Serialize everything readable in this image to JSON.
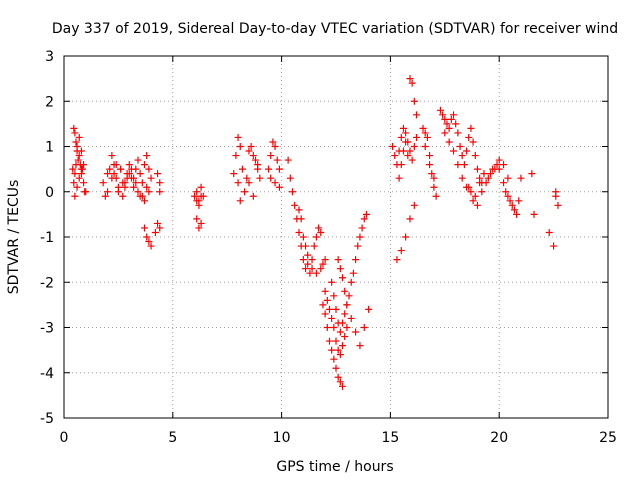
{
  "chart_data": {
    "type": "scatter",
    "title": "Day 337 of 2019, Sidereal Day-to-day VTEC variation (SDTVAR) for receiver wind",
    "xlabel": "GPS time / hours",
    "ylabel": "SDTVAR / TECUs",
    "xlim": [
      0,
      25
    ],
    "ylim": [
      -5,
      3
    ],
    "xticks": [
      0,
      5,
      10,
      15,
      20,
      25
    ],
    "yticks": [
      -5,
      -4,
      -3,
      -2,
      -1,
      0,
      1,
      2,
      3
    ],
    "grid": true,
    "marker": "plus",
    "color": "#ff0000",
    "series": [
      {
        "name": "SDTVAR",
        "x": [
          0.4,
          0.45,
          0.5,
          0.55,
          0.6,
          0.65,
          0.7,
          0.75,
          0.8,
          0.85,
          0.9,
          0.95,
          0.45,
          0.5,
          0.55,
          0.6,
          0.7,
          0.8,
          0.9,
          0.5,
          0.6,
          0.7,
          0.8,
          1.0,
          1.8,
          1.9,
          2.0,
          2.1,
          2.2,
          2.3,
          2.4,
          2.5,
          2.6,
          2.7,
          2.8,
          2.9,
          3.0,
          3.1,
          3.2,
          3.3,
          3.4,
          3.5,
          3.6,
          3.7,
          3.8,
          3.9,
          4.0,
          2.0,
          2.2,
          2.4,
          2.6,
          2.8,
          3.0,
          3.2,
          3.4,
          3.6,
          3.8,
          2.3,
          2.5,
          2.7,
          2.9,
          3.1,
          3.3,
          3.5,
          3.7,
          3.9,
          3.7,
          3.8,
          3.9,
          4.0,
          4.2,
          4.3,
          4.4,
          4.3,
          4.4,
          4.4,
          6.0,
          6.1,
          6.2,
          6.3,
          6.4,
          6.1,
          6.2,
          6.3,
          6.1,
          6.2,
          6.3,
          7.8,
          7.9,
          8.0,
          8.1,
          8.2,
          8.0,
          8.1,
          8.3,
          8.4,
          8.5,
          8.6,
          8.7,
          8.8,
          8.9,
          9.0,
          8.5,
          8.7,
          8.9,
          9.4,
          9.5,
          9.6,
          9.7,
          9.8,
          9.9,
          9.5,
          9.7,
          9.9,
          10.3,
          10.4,
          10.5,
          10.6,
          10.7,
          10.8,
          10.9,
          11.0,
          11.1,
          11.2,
          11.3,
          11.4,
          11.5,
          11.6,
          11.7,
          11.8,
          10.8,
          10.9,
          11.0,
          11.1,
          11.2,
          11.4,
          11.6,
          11.8,
          11.9,
          12.0,
          11.9,
          12.0,
          12.1,
          12.2,
          12.3,
          12.4,
          12.5,
          12.6,
          12.7,
          12.8,
          12.0,
          12.1,
          12.2,
          12.3,
          12.4,
          12.5,
          12.6,
          12.7,
          12.8,
          12.9,
          13.0,
          12.3,
          12.4,
          12.5,
          12.6,
          12.7,
          12.8,
          12.9,
          13.0,
          13.1,
          13.2,
          13.3,
          13.4,
          13.5,
          13.6,
          13.7,
          13.8,
          13.9,
          12.6,
          12.7,
          12.8,
          12.9,
          13.0,
          13.2,
          13.4,
          13.6,
          13.8,
          14.0,
          15.1,
          15.2,
          15.3,
          15.4,
          15.5,
          15.6,
          15.7,
          15.8,
          15.9,
          16.0,
          16.1,
          16.2,
          15.3,
          15.5,
          15.7,
          15.9,
          16.1,
          15.4,
          15.5,
          15.6,
          15.7,
          15.8,
          15.9,
          16.0,
          16.1,
          16.2,
          16.5,
          16.6,
          16.7,
          16.8,
          16.9,
          17.0,
          17.1,
          16.6,
          16.8,
          17.0,
          17.3,
          17.4,
          17.5,
          17.6,
          17.7,
          17.8,
          17.9,
          18.0,
          18.1,
          18.2,
          18.3,
          18.4,
          18.5,
          18.6,
          18.7,
          18.8,
          18.9,
          19.0,
          19.1,
          19.2,
          17.5,
          17.7,
          17.9,
          18.1,
          18.3,
          18.5,
          18.7,
          18.9,
          19.1,
          19.3,
          19.5,
          19.7,
          19.9,
          18.6,
          18.8,
          19.0,
          19.2,
          19.4,
          19.6,
          19.8,
          20.0,
          20.2,
          20.4,
          20.0,
          20.2,
          20.4,
          20.6,
          20.8,
          21.0,
          20.3,
          20.5,
          20.7,
          20.9,
          21.5,
          21.6,
          22.3,
          22.5,
          22.6,
          22.7,
          22.6
        ],
        "y": [
          0.5,
          1.4,
          1.3,
          1.1,
          0.9,
          0.7,
          0.8,
          0.6,
          0.4,
          0.5,
          0.2,
          0.0,
          0.2,
          0.4,
          0.6,
          1.0,
          1.2,
          0.9,
          0.6,
          -0.1,
          0.1,
          0.3,
          0.5,
          0.0,
          0.2,
          -0.1,
          0.4,
          0.5,
          0.8,
          0.6,
          0.3,
          0.0,
          0.5,
          0.2,
          0.1,
          0.4,
          0.6,
          0.3,
          0.1,
          0.5,
          0.7,
          0.4,
          0.2,
          0.6,
          0.8,
          0.5,
          0.3,
          0.0,
          0.3,
          0.6,
          0.5,
          0.2,
          0.4,
          0.3,
          0.0,
          -0.1,
          0.1,
          0.4,
          0.1,
          -0.1,
          0.3,
          0.5,
          0.2,
          -0.1,
          -0.2,
          0.0,
          -0.8,
          -1.0,
          -1.1,
          -1.2,
          -0.9,
          -0.7,
          -0.8,
          0.4,
          0.2,
          0.0,
          -0.1,
          0.0,
          -0.2,
          0.1,
          -0.1,
          -0.6,
          -0.8,
          -0.7,
          -0.2,
          -0.3,
          -0.1,
          0.4,
          0.8,
          1.2,
          1.0,
          0.5,
          0.2,
          -0.2,
          0.0,
          0.3,
          0.9,
          1.0,
          0.8,
          0.7,
          0.5,
          0.3,
          0.2,
          -0.1,
          0.6,
          0.5,
          0.8,
          1.1,
          1.0,
          0.7,
          0.5,
          0.3,
          0.2,
          0.1,
          0.7,
          0.3,
          0.0,
          -0.3,
          -0.6,
          -0.9,
          -1.2,
          -1.5,
          -1.7,
          -1.6,
          -1.8,
          -1.5,
          -1.2,
          -1.0,
          -0.8,
          -0.9,
          -0.4,
          -0.6,
          -1.0,
          -1.2,
          -1.4,
          -1.7,
          -1.8,
          -1.7,
          -1.6,
          -1.5,
          -2.5,
          -2.7,
          -3.0,
          -3.3,
          -3.5,
          -3.7,
          -3.9,
          -4.1,
          -4.2,
          -4.3,
          -2.2,
          -2.4,
          -2.6,
          -2.8,
          -3.0,
          -3.3,
          -3.5,
          -3.6,
          -3.4,
          -3.2,
          -3.0,
          -2.0,
          -2.3,
          -2.6,
          -2.9,
          -3.1,
          -2.9,
          -2.7,
          -2.5,
          -2.3,
          -2.0,
          -1.8,
          -1.5,
          -1.2,
          -1.0,
          -0.8,
          -0.6,
          -0.5,
          -1.5,
          -1.7,
          -1.9,
          -2.2,
          -2.5,
          -2.8,
          -3.1,
          -3.4,
          -3.0,
          -2.6,
          1.0,
          0.8,
          0.6,
          0.9,
          1.2,
          1.4,
          1.3,
          1.1,
          0.9,
          0.7,
          1.0,
          1.2,
          -1.5,
          -1.3,
          -1.0,
          -0.6,
          -0.3,
          0.3,
          0.6,
          0.9,
          1.1,
          0.8,
          2.5,
          2.4,
          2.0,
          1.7,
          1.4,
          1.3,
          1.2,
          0.8,
          0.4,
          0.1,
          -0.1,
          1.0,
          0.6,
          0.3,
          1.8,
          1.7,
          1.6,
          1.5,
          1.4,
          1.6,
          1.7,
          1.5,
          1.3,
          1.0,
          0.8,
          0.6,
          0.9,
          1.2,
          1.4,
          1.1,
          0.8,
          0.5,
          0.3,
          0.2,
          1.3,
          1.1,
          0.9,
          0.6,
          0.3,
          0.1,
          0.0,
          -0.1,
          0.2,
          0.4,
          0.3,
          0.5,
          0.6,
          0.1,
          -0.2,
          -0.3,
          0.0,
          0.2,
          0.4,
          0.5,
          0.7,
          0.6,
          0.3,
          0.5,
          0.2,
          -0.1,
          -0.3,
          -0.5,
          0.3,
          0.0,
          -0.2,
          -0.4,
          -0.2,
          0.4,
          -0.5,
          -0.9,
          -1.2,
          -0.1,
          -0.3,
          0.0
        ]
      }
    ]
  }
}
